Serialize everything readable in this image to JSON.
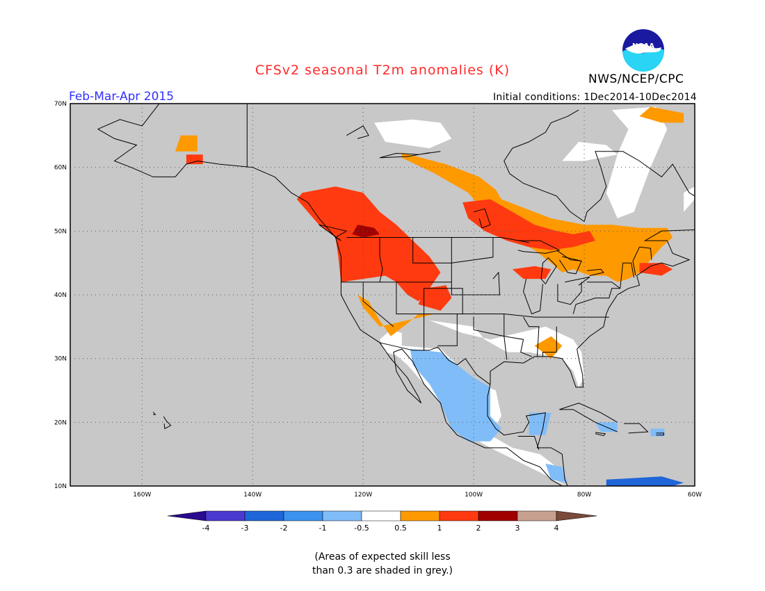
{
  "header": {
    "title": "CFSv2 seasonal T2m anomalies (K)",
    "period": "Feb-Mar-Apr 2015",
    "initial_conditions": "Initial conditions: 1Dec2014-10Dec2014",
    "agency": "NWS/NCEP/CPC",
    "logo_text": "NOAA"
  },
  "map": {
    "lon_range": [
      -173,
      -60
    ],
    "lat_range": [
      10,
      70
    ],
    "lon_ticks": [
      {
        "value": -160,
        "label": "160W"
      },
      {
        "value": -140,
        "label": "140W"
      },
      {
        "value": -120,
        "label": "120W"
      },
      {
        "value": -100,
        "label": "100W"
      },
      {
        "value": -80,
        "label": "80W"
      },
      {
        "value": -60,
        "label": "60W"
      }
    ],
    "lat_ticks": [
      {
        "value": 10,
        "label": "10N"
      },
      {
        "value": 20,
        "label": "20N"
      },
      {
        "value": 30,
        "label": "30N"
      },
      {
        "value": 40,
        "label": "40N"
      },
      {
        "value": 50,
        "label": "50N"
      },
      {
        "value": 60,
        "label": "60N"
      },
      {
        "value": 70,
        "label": "70N"
      }
    ],
    "grid": true,
    "background_color": "#c8c8c8"
  },
  "colorbar": {
    "colors": [
      "#2a0a8f",
      "#4a3ad0",
      "#1f66d8",
      "#3c92ee",
      "#80bdf8",
      "#ffffff",
      "#ff9900",
      "#ff3a10",
      "#a00000",
      "#c8a090",
      "#7a4a3a"
    ],
    "labels": [
      "-4",
      "-3",
      "-2",
      "-1",
      "-0.5",
      "0.5",
      "1",
      "2",
      "3",
      "4"
    ]
  },
  "footnote": {
    "line1": "(Areas of expected skill less",
    "line2": "than 0.3 are shaded in grey.)"
  }
}
